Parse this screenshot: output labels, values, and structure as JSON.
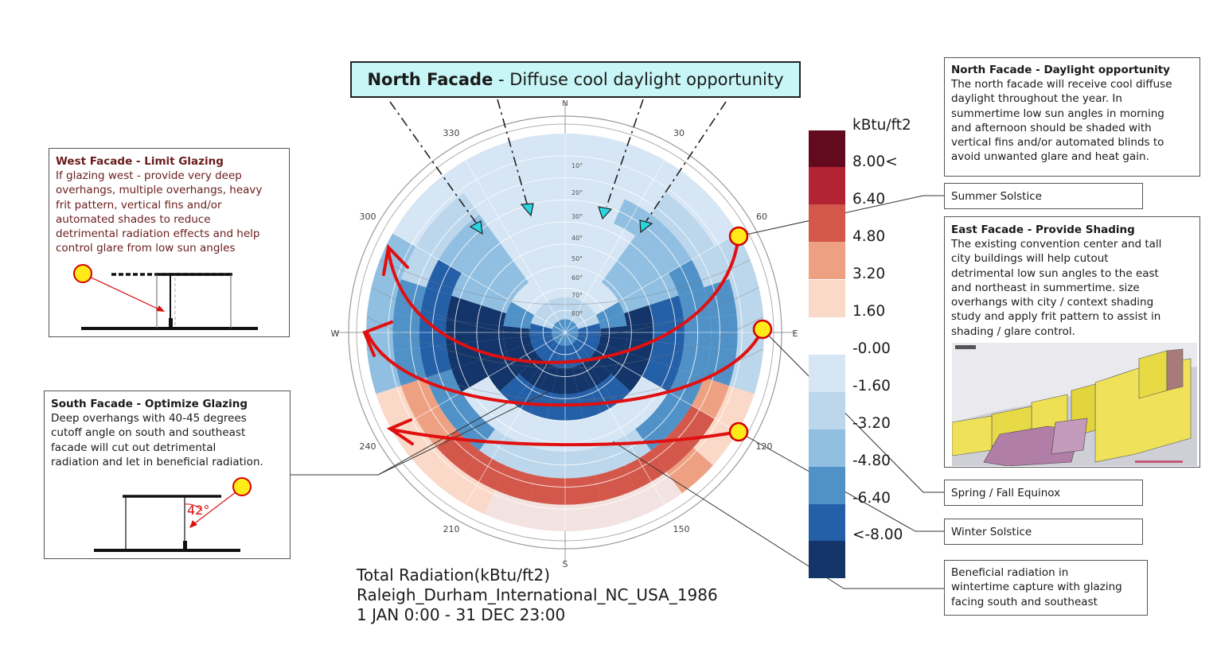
{
  "banner": {
    "bold": "North Facade",
    "rest": " - Diffuse cool daylight opportunity"
  },
  "compass": {
    "north": "N",
    "south": "S",
    "east": "E",
    "west": "W",
    "azimuths": [
      "330",
      "30",
      "300",
      "60",
      "240",
      "120",
      "210",
      "150"
    ],
    "altitudes": [
      "10°",
      "20°",
      "30°",
      "40°",
      "50°",
      "60°",
      "70°",
      "80°"
    ]
  },
  "legend": {
    "unit": "kBtu/ft2",
    "labels": [
      "8.00<",
      "6.40",
      "4.80",
      "3.20",
      "1.60",
      "-0.00",
      "-1.60",
      "-3.20",
      "-4.80",
      "-6.40",
      "<-8.00"
    ],
    "colors": {
      "warm": [
        "#640a1e",
        "#b22333",
        "#d3574a",
        "#eea182",
        "#fad9c8"
      ],
      "cool": [
        "#d6e6f4",
        "#bcd6eb",
        "#91bfe1",
        "#5092c8",
        "#2460a8",
        "#133569"
      ]
    }
  },
  "west_box": {
    "title": "West Facade - Limit Glazing",
    "lines": [
      "If glazing west - provide very deep",
      "overhangs, multiple overhangs, heavy",
      "frit pattern, vertical fins and/or",
      "automated shades to reduce",
      "detrimental radiation effects and help",
      "control glare from low sun angles"
    ]
  },
  "south_box": {
    "title": "South Facade - Optimize Glazing",
    "lines": [
      "Deep overhangs with 40-45 degrees",
      "cutoff angle on south and southeast",
      "facade will cut out detrimental",
      "radiation and let in beneficial radiation."
    ],
    "angle": "42°"
  },
  "north_box": {
    "title": "North Facade - Daylight opportunity",
    "lines": [
      "The north facade will receive cool diffuse",
      "daylight throughout the year.  In",
      "summertime low sun angles in morning",
      "and afternoon should be shaded with",
      "vertical fins and/or automated blinds to",
      "avoid unwanted glare and heat gain."
    ]
  },
  "east_box": {
    "title": "East Facade - Provide Shading",
    "lines": [
      "The existing convention center and tall",
      "city buildings will help cutout",
      "detrimental low sun angles to the east",
      "and northeast in summertime.  size",
      "overhangs with city / context shading",
      "study and apply frit pattern to assist in",
      "shading / glare control."
    ]
  },
  "callouts": {
    "summer": "Summer Solstice",
    "equinox": "Spring / Fall Equinox",
    "winter": "Winter Solstice",
    "beneficial": [
      "Beneficial radiation in",
      "wintertime capture with glazing",
      "facing south and southeast"
    ]
  },
  "bottom": {
    "line1": "Total Radiation(kBtu/ft2)",
    "line2": "Raleigh_Durham_International_NC_USA_1986",
    "line3": "1 JAN 0:00 - 31 DEC 23:00"
  }
}
